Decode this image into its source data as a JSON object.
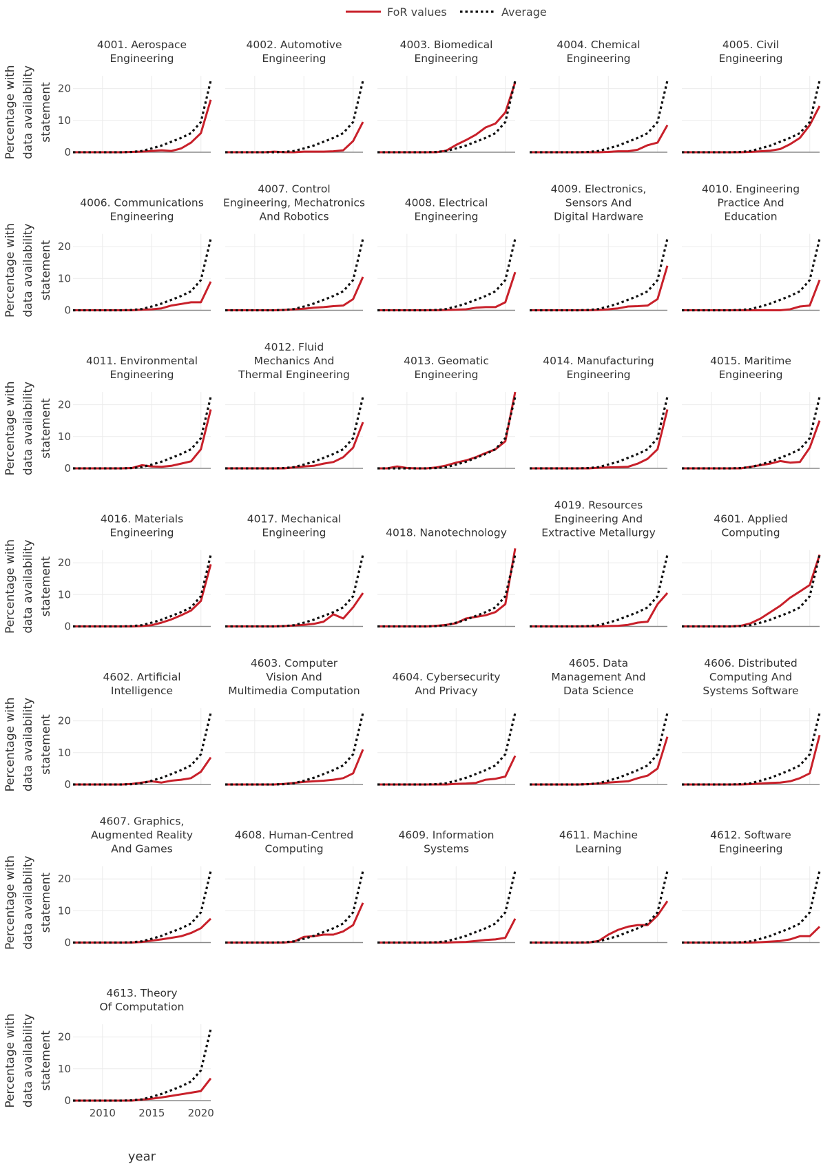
{
  "chart_data": {
    "type": "line",
    "xlabel": "year",
    "ylabel": "Percentage with data availability statement",
    "ylim": [
      0,
      24
    ],
    "yticks": [
      0,
      10,
      20
    ],
    "xticks": [
      2010,
      2015,
      2020
    ],
    "x": [
      2007,
      2008,
      2009,
      2010,
      2011,
      2012,
      2013,
      2014,
      2015,
      2016,
      2017,
      2018,
      2019,
      2020,
      2021
    ],
    "legend": {
      "position": "top-center",
      "entries": [
        "FoR values",
        "Average"
      ]
    },
    "colors": {
      "for_values": "#c8202a",
      "average": "#111111"
    },
    "average": [
      0,
      0,
      0,
      0,
      0,
      0,
      0.1,
      0.4,
      1.2,
      2.1,
      3.3,
      4.5,
      6.0,
      9.5,
      22.5
    ],
    "panels": [
      {
        "title": [
          "4001. Aerospace",
          "Engineering"
        ],
        "values": [
          0,
          0,
          0,
          0,
          0,
          0,
          0.1,
          0.2,
          0.4,
          0.6,
          0.4,
          1.2,
          3.0,
          6.0,
          16.5
        ]
      },
      {
        "title": [
          "4002. Automotive",
          "Engineering"
        ],
        "values": [
          0,
          0,
          0,
          0,
          0,
          0.2,
          0,
          0,
          0.2,
          0.2,
          0.2,
          0.3,
          0.6,
          3.5,
          9.5
        ]
      },
      {
        "title": [
          "4003. Biomedical",
          "Engineering"
        ],
        "values": [
          0,
          0,
          0,
          0,
          0,
          0,
          0,
          0.5,
          2.3,
          3.8,
          5.5,
          7.8,
          9.0,
          12.5,
          22.0
        ]
      },
      {
        "title": [
          "4004. Chemical",
          "Engineering"
        ],
        "values": [
          0,
          0,
          0,
          0,
          0,
          0,
          0,
          0,
          0.1,
          0.3,
          0.3,
          0.8,
          2.2,
          3.0,
          8.5
        ]
      },
      {
        "title": [
          "4005. Civil",
          "Engineering"
        ],
        "values": [
          0,
          0,
          0,
          0,
          0,
          0,
          0,
          0.1,
          0.3,
          0.5,
          1.0,
          2.5,
          4.5,
          8.5,
          14.5
        ]
      },
      {
        "title": [
          "4006. Communications",
          "Engineering"
        ],
        "values": [
          0,
          0,
          0,
          0,
          0,
          0,
          0,
          0.2,
          0.3,
          0.6,
          1.5,
          2.0,
          2.5,
          2.5,
          9.0
        ]
      },
      {
        "title": [
          "4007. Control",
          "Engineering, Mechatronics",
          "And Robotics"
        ],
        "values": [
          0,
          0,
          0,
          0,
          0,
          0,
          0.1,
          0.3,
          0.5,
          0.8,
          1.0,
          1.3,
          1.5,
          3.5,
          10.5
        ]
      },
      {
        "title": [
          "4008. Electrical",
          "Engineering"
        ],
        "values": [
          0,
          0,
          0,
          0,
          0,
          0,
          0,
          0.1,
          0.2,
          0.3,
          0.8,
          1.0,
          1.0,
          2.5,
          12.0
        ]
      },
      {
        "title": [
          "4009. Electronics,",
          "Sensors And",
          "Digital Hardware"
        ],
        "values": [
          0,
          0,
          0,
          0,
          0,
          0,
          0,
          0.1,
          0.3,
          0.6,
          1.2,
          1.3,
          1.5,
          3.5,
          14.0
        ]
      },
      {
        "title": [
          "4010. Engineering",
          "Practice And",
          "Education"
        ],
        "values": [
          0,
          0,
          0,
          0,
          0,
          0,
          0,
          0,
          0,
          0,
          0,
          0.3,
          1.2,
          1.5,
          9.5
        ]
      },
      {
        "title": [
          "4011. Environmental",
          "Engineering"
        ],
        "values": [
          0,
          0,
          0,
          0,
          0,
          0,
          0.1,
          1.0,
          0.6,
          0.5,
          0.8,
          1.5,
          2.2,
          6.0,
          18.5
        ]
      },
      {
        "title": [
          "4012. Fluid",
          "Mechanics And",
          "Thermal Engineering"
        ],
        "values": [
          0,
          0,
          0,
          0,
          0,
          0,
          0,
          0.3,
          0.6,
          0.8,
          1.5,
          2.0,
          3.5,
          6.5,
          14.5
        ]
      },
      {
        "title": [
          "4013. Geomatic",
          "Engineering"
        ],
        "values": [
          0,
          0,
          0.6,
          0.1,
          0,
          0,
          0.3,
          0.9,
          1.8,
          2.5,
          3.5,
          4.8,
          6.0,
          8.5,
          24.0
        ]
      },
      {
        "title": [
          "4014. Manufacturing",
          "Engineering"
        ],
        "values": [
          0,
          0,
          0,
          0,
          0,
          0,
          0,
          0.2,
          0.3,
          0.4,
          0.5,
          1.5,
          3.0,
          6.0,
          18.5
        ]
      },
      {
        "title": [
          "4015. Maritime",
          "Engineering"
        ],
        "values": [
          0,
          0,
          0,
          0,
          0,
          0,
          0,
          0.5,
          1.0,
          1.5,
          2.3,
          1.8,
          2.0,
          6.5,
          15.0
        ]
      },
      {
        "title": [
          "4016. Materials",
          "Engineering"
        ],
        "values": [
          0,
          0,
          0,
          0,
          0,
          0,
          0,
          0.1,
          0.4,
          1.2,
          2.2,
          3.5,
          5.0,
          8.0,
          19.5
        ]
      },
      {
        "title": [
          "4017. Mechanical",
          "Engineering"
        ],
        "values": [
          0,
          0,
          0,
          0,
          0,
          0,
          0.1,
          0.3,
          0.5,
          0.8,
          1.5,
          3.8,
          2.5,
          6.0,
          10.5
        ]
      },
      {
        "title": [
          "4018. Nanotechnology"
        ],
        "values": [
          0,
          0,
          0,
          0,
          0,
          0,
          0.2,
          0.5,
          1.0,
          2.5,
          3.0,
          3.5,
          4.5,
          7.0,
          24.5
        ]
      },
      {
        "title": [
          "4019. Resources",
          "Engineering And",
          "Extractive Metallurgy"
        ],
        "values": [
          0,
          0,
          0,
          0,
          0,
          0,
          0,
          0,
          0.1,
          0.2,
          0.5,
          1.2,
          1.5,
          7.0,
          10.5
        ]
      },
      {
        "title": [
          "4601. Applied",
          "Computing"
        ],
        "values": [
          0,
          0,
          0,
          0,
          0,
          0,
          0.2,
          1.0,
          2.5,
          4.5,
          6.5,
          9.0,
          11.0,
          13.0,
          22.5
        ]
      },
      {
        "title": [
          "4602. Artificial",
          "Intelligence"
        ],
        "values": [
          0,
          0,
          0,
          0,
          0,
          0,
          0.2,
          0.6,
          1.0,
          0.6,
          1.2,
          1.5,
          2.0,
          4.0,
          8.5
        ]
      },
      {
        "title": [
          "4603. Computer",
          "Vision And",
          "Multimedia Computation"
        ],
        "values": [
          0,
          0,
          0,
          0,
          0,
          0,
          0.2,
          0.5,
          0.8,
          1.0,
          1.2,
          1.5,
          2.0,
          3.5,
          11.0
        ]
      },
      {
        "title": [
          "4604. Cybersecurity",
          "And Privacy"
        ],
        "values": [
          0,
          0,
          0,
          0,
          0,
          0,
          0,
          0,
          0.2,
          0.3,
          0.5,
          1.5,
          1.8,
          2.5,
          9.0
        ]
      },
      {
        "title": [
          "4605. Data",
          "Management And",
          "Data Science"
        ],
        "values": [
          0,
          0,
          0,
          0,
          0,
          0,
          0.1,
          0.3,
          0.6,
          0.8,
          1.0,
          2.0,
          2.8,
          5.0,
          15.0
        ]
      },
      {
        "title": [
          "4606. Distributed",
          "Computing And",
          "Systems Software"
        ],
        "values": [
          0,
          0,
          0,
          0,
          0,
          0,
          0,
          0.1,
          0.3,
          0.5,
          0.6,
          1.0,
          2.0,
          3.5,
          15.5
        ]
      },
      {
        "title": [
          "4607. Graphics,",
          "Augmented Reality",
          "And Games"
        ],
        "values": [
          0,
          0,
          0,
          0,
          0,
          0,
          0,
          0.2,
          0.6,
          1.0,
          1.5,
          2.0,
          3.0,
          4.5,
          7.5
        ]
      },
      {
        "title": [
          "4608. Human-Centred",
          "Computing"
        ],
        "values": [
          0,
          0,
          0,
          0,
          0,
          0,
          0,
          0.3,
          1.8,
          2.0,
          2.5,
          2.5,
          3.5,
          5.5,
          12.5
        ]
      },
      {
        "title": [
          "4609. Information",
          "Systems"
        ],
        "values": [
          0,
          0,
          0,
          0,
          0,
          0,
          0,
          0,
          0.1,
          0.2,
          0.5,
          0.8,
          1.0,
          1.5,
          7.5
        ]
      },
      {
        "title": [
          "4611. Machine",
          "Learning"
        ],
        "values": [
          0,
          0,
          0,
          0,
          0,
          0,
          0,
          0.5,
          2.5,
          4.0,
          5.0,
          5.5,
          5.5,
          8.5,
          13.0
        ]
      },
      {
        "title": [
          "4612. Software",
          "Engineering"
        ],
        "values": [
          0,
          0,
          0,
          0,
          0,
          0,
          0,
          0,
          0.1,
          0.3,
          0.5,
          1.0,
          2.0,
          2.0,
          5.0
        ]
      },
      {
        "title": [
          "4613. Theory",
          "Of Computation"
        ],
        "values": [
          0,
          0,
          0,
          0,
          0,
          0,
          0,
          0.3,
          0.6,
          1.0,
          1.5,
          2.0,
          2.5,
          3.0,
          7.0
        ]
      }
    ]
  }
}
